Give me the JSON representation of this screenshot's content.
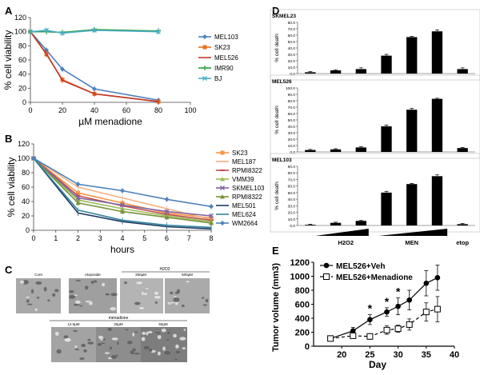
{
  "panels": {
    "A": "A",
    "B": "B",
    "C": "C",
    "D": "D",
    "E": "E"
  },
  "colors": {
    "MEL103": "#4f81bd",
    "SK23": "#e8711c",
    "MEL526": "#c0392b",
    "IMR90": "#2e9e3e",
    "BJ": "#4bacc6",
    "B_SK23": "#f79646",
    "B_MEL187": "#f4b183",
    "B_RPMI8322a": "#c0504d",
    "B_VMM39": "#9bbb59",
    "B_SKMEL103": "#8064a2",
    "B_RPMI8322b": "#77933c",
    "B_MEL501": "#1f3864",
    "B_MEL624": "#31859c",
    "B_WM2664": "#4f81bd"
  },
  "panelC": {
    "row1_labels": [
      "Cont",
      "etoposide",
      "250µM",
      "500µM"
    ],
    "row1_group": "H2O2",
    "row2_labels": [
      "12.5µM",
      "25µM",
      "50µM"
    ],
    "row2_group": "menadione"
  },
  "chart_data": [
    {
      "id": "A",
      "type": "line",
      "title": "",
      "xlabel": "µM menadione",
      "ylabel": "% cell viability",
      "xlim": [
        0,
        100
      ],
      "ylim": [
        0,
        120
      ],
      "xticks": [
        "0",
        "20",
        "40",
        "60",
        "80",
        "100"
      ],
      "yticks": [
        "0",
        "20",
        "40",
        "60",
        "80",
        "100",
        "120"
      ],
      "legend": "right",
      "series": [
        {
          "name": "MEL103",
          "color_key": "MEL103",
          "marker": "diamond",
          "x": [
            0,
            10,
            20,
            40,
            80
          ],
          "y": [
            100,
            74,
            47,
            19,
            3
          ]
        },
        {
          "name": "SK23",
          "color_key": "SK23",
          "marker": "square",
          "x": [
            0,
            10,
            20,
            40,
            80
          ],
          "y": [
            100,
            68,
            32,
            12,
            1
          ]
        },
        {
          "name": "MEL526",
          "color_key": "MEL526",
          "marker": "none",
          "x": [
            0,
            10,
            20,
            40,
            80
          ],
          "y": [
            100,
            69,
            31,
            12,
            1
          ]
        },
        {
          "name": "IMR90",
          "color_key": "IMR90",
          "marker": "cross",
          "x": [
            0,
            10,
            20,
            40,
            80
          ],
          "y": [
            100,
            100,
            99,
            103,
            101
          ]
        },
        {
          "name": "BJ",
          "color_key": "BJ",
          "marker": "x",
          "x": [
            0,
            10,
            20,
            40,
            80
          ],
          "y": [
            100,
            102,
            98,
            102,
            100
          ]
        }
      ]
    },
    {
      "id": "B",
      "type": "line",
      "title": "",
      "xlabel": "hours",
      "ylabel": "% cell viability",
      "xlim": [
        0,
        8
      ],
      "ylim": [
        0,
        120
      ],
      "xticks": [
        "0",
        "1",
        "2",
        "3",
        "4",
        "5",
        "6",
        "7",
        "8"
      ],
      "yticks": [
        "0",
        "20",
        "40",
        "60",
        "80",
        "100",
        "120"
      ],
      "legend": "right",
      "series": [
        {
          "name": "SK23",
          "color_key": "B_SK23",
          "marker": "square",
          "x": [
            0,
            2,
            4,
            6,
            8
          ],
          "y": [
            100,
            52,
            38,
            24,
            17
          ]
        },
        {
          "name": "MEL187",
          "color_key": "B_MEL187",
          "marker": "none",
          "x": [
            0,
            2,
            4,
            6,
            8
          ],
          "y": [
            100,
            60,
            45,
            30,
            15
          ]
        },
        {
          "name": "RPMI8322",
          "color_key": "B_RPMI8322a",
          "marker": "dash",
          "x": [
            0,
            2,
            4,
            6,
            8
          ],
          "y": [
            100,
            48,
            34,
            22,
            14
          ]
        },
        {
          "name": "VMM39",
          "color_key": "B_VMM39",
          "marker": "triangle",
          "x": [
            0,
            2,
            4,
            6,
            8
          ],
          "y": [
            100,
            42,
            30,
            20,
            12
          ]
        },
        {
          "name": "SKMEL103",
          "color_key": "B_SKMEL103",
          "marker": "x",
          "x": [
            0,
            2,
            4,
            6,
            8
          ],
          "y": [
            100,
            45,
            35,
            26,
            20
          ]
        },
        {
          "name": "RPMI8322",
          "color_key": "B_RPMI8322b",
          "marker": "triangle",
          "x": [
            0,
            2,
            4,
            6,
            8
          ],
          "y": [
            100,
            38,
            26,
            18,
            10
          ]
        },
        {
          "name": "MEL501",
          "color_key": "B_MEL501",
          "marker": "none",
          "x": [
            0,
            2,
            4,
            6,
            8
          ],
          "y": [
            100,
            24,
            12,
            5,
            2
          ]
        },
        {
          "name": "MEL624",
          "color_key": "B_MEL624",
          "marker": "none",
          "x": [
            0,
            2,
            4,
            6,
            8
          ],
          "y": [
            100,
            28,
            14,
            7,
            4
          ]
        },
        {
          "name": "WM2664",
          "color_key": "B_WM2664",
          "marker": "diamond",
          "x": [
            0,
            2,
            4,
            6,
            8
          ],
          "y": [
            100,
            64,
            55,
            43,
            33
          ]
        }
      ]
    },
    {
      "id": "D1",
      "type": "bar",
      "title": "SKMEL23",
      "ylabel": "% cell death",
      "ylim": [
        0,
        80
      ],
      "yticks": [
        "0.0",
        "10.0",
        "20.0",
        "30.0",
        "40.0",
        "50.0",
        "60.0",
        "70.0",
        "80.0"
      ],
      "values": [
        2,
        5,
        7,
        28,
        57,
        66,
        7
      ],
      "errors": [
        1,
        1,
        2,
        2,
        1,
        2,
        2
      ]
    },
    {
      "id": "D2",
      "type": "bar",
      "title": "MEL526",
      "ylabel": "% cell death",
      "ylim": [
        0,
        100
      ],
      "yticks": [
        "0.0",
        "10.0",
        "20.0",
        "30.0",
        "40.0",
        "50.0",
        "60.0",
        "70.0",
        "80.0",
        "90.0",
        "100.0"
      ],
      "values": [
        3,
        4,
        7,
        40,
        66,
        83,
        6
      ],
      "errors": [
        1,
        1,
        1,
        2,
        2,
        1,
        1
      ]
    },
    {
      "id": "D3",
      "type": "bar",
      "title": "MEL103",
      "ylabel": "% cell death",
      "ylim": [
        0,
        90
      ],
      "yticks": [
        "0.0",
        "10.0",
        "20.0",
        "30.0",
        "40.0",
        "50.0",
        "60.0",
        "70.0",
        "80.0",
        "90.0"
      ],
      "values": [
        1,
        4,
        7,
        50,
        63,
        75,
        2
      ],
      "errors": [
        1,
        1,
        1,
        2,
        1,
        2,
        1
      ],
      "groups": [
        "H2O2",
        "MEN",
        "etop"
      ]
    },
    {
      "id": "E",
      "type": "line",
      "title": "",
      "xlabel": "Day",
      "ylabel": "Tumor volume (mm3)",
      "xlim": [
        15,
        40
      ],
      "ylim": [
        0,
        1200
      ],
      "xticks": [
        "20",
        "25",
        "30",
        "35",
        "40"
      ],
      "yticks": [
        "0",
        "200",
        "400",
        "600",
        "800",
        "1000",
        "1200"
      ],
      "legend": "top-left",
      "series": [
        {
          "name": "MEL526+Veh",
          "marker": "circle",
          "x": [
            18,
            22,
            25,
            28,
            30,
            32,
            35,
            37
          ],
          "y": [
            110,
            220,
            380,
            490,
            570,
            660,
            900,
            980
          ],
          "err": [
            30,
            50,
            70,
            60,
            120,
            140,
            180,
            180
          ]
        },
        {
          "name": "MEL526+Menadione",
          "marker": "open-square",
          "x": [
            18,
            22,
            25,
            28,
            30,
            32,
            35,
            37
          ],
          "y": [
            110,
            150,
            140,
            230,
            250,
            310,
            490,
            530
          ],
          "err": [
            30,
            30,
            40,
            60,
            50,
            80,
            130,
            180
          ]
        }
      ],
      "annotations": [
        "*",
        "*",
        "*"
      ]
    }
  ]
}
